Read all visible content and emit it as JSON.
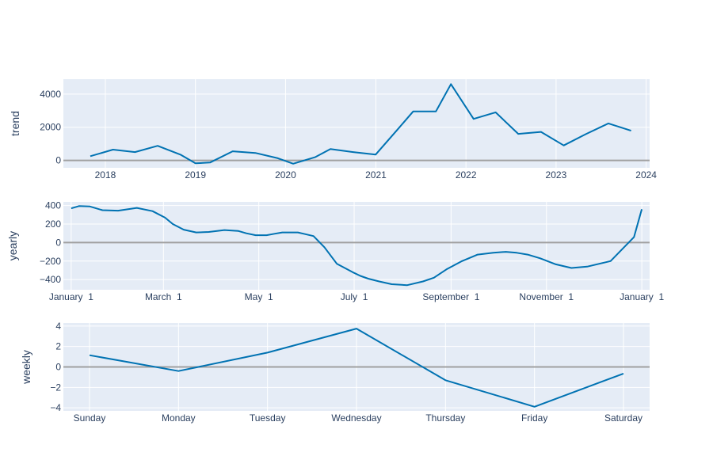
{
  "chart_data": [
    {
      "type": "line",
      "ylabel": "trend",
      "x_type": "date",
      "xlim": [
        "2017-07-15",
        "2024-01-15"
      ],
      "ylim": [
        -450,
        4900
      ],
      "y_ticks": [
        0,
        2000,
        4000
      ],
      "y_tick_labels": [
        "0",
        "2000",
        "4000"
      ],
      "x_ticks": [
        "2018-01-01",
        "2019-01-01",
        "2020-01-01",
        "2021-01-01",
        "2022-01-01",
        "2023-01-01",
        "2024-01-01"
      ],
      "x_tick_labels": [
        "2018",
        "2019",
        "2020",
        "2021",
        "2022",
        "2023",
        "2024"
      ],
      "grid": true,
      "zero_line": true,
      "series": [
        {
          "color": "#0072b2",
          "x": [
            "2017-11-01",
            "2018-02-01",
            "2018-05-01",
            "2018-08-01",
            "2018-11-01",
            "2019-01-01",
            "2019-03-01",
            "2019-06-01",
            "2019-09-01",
            "2019-12-01",
            "2020-02-01",
            "2020-05-01",
            "2020-07-01",
            "2020-10-01",
            "2020-12-31",
            "2021-04-01",
            "2021-06-01",
            "2021-09-01",
            "2021-11-01",
            "2022-02-01",
            "2022-05-01",
            "2022-08-01",
            "2022-11-01",
            "2023-02-01",
            "2023-05-01",
            "2023-08-01",
            "2023-11-01"
          ],
          "y": [
            250,
            650,
            500,
            880,
            350,
            -180,
            -130,
            550,
            450,
            130,
            -200,
            200,
            680,
            500,
            350,
            1900,
            2950,
            2950,
            4600,
            2500,
            2900,
            1600,
            1720,
            900,
            1580,
            2230,
            1790
          ]
        }
      ]
    },
    {
      "type": "line",
      "ylabel": "yearly",
      "x_type": "day_of_year",
      "xlim": [
        -5,
        370
      ],
      "ylim": [
        -510,
        440
      ],
      "y_ticks": [
        -400,
        -200,
        0,
        200,
        400
      ],
      "y_tick_labels": [
        "−400",
        "−200",
        "0",
        "200",
        "400"
      ],
      "x_ticks": [
        0,
        59,
        120,
        181,
        243,
        304,
        365
      ],
      "x_tick_labels": [
        "January  1",
        "March  1",
        "May  1",
        "July  1",
        "September  1",
        "November  1",
        "January  1"
      ],
      "grid": true,
      "zero_line": true,
      "series": [
        {
          "color": "#0072b2",
          "x": [
            0,
            5,
            12,
            20,
            30,
            42,
            52,
            60,
            65,
            72,
            80,
            88,
            98,
            107,
            112,
            118,
            125,
            130,
            135,
            145,
            155,
            162,
            170,
            180,
            185,
            190,
            197,
            205,
            215,
            225,
            232,
            240,
            250,
            260,
            270,
            278,
            285,
            292,
            300,
            310,
            320,
            330,
            345,
            360,
            365
          ],
          "y": [
            370,
            395,
            390,
            350,
            345,
            375,
            340,
            270,
            200,
            140,
            110,
            115,
            135,
            125,
            100,
            80,
            80,
            95,
            110,
            110,
            70,
            -50,
            -230,
            -320,
            -360,
            -390,
            -420,
            -450,
            -460,
            -420,
            -380,
            -290,
            -200,
            -130,
            -110,
            -100,
            -110,
            -130,
            -170,
            -235,
            -275,
            -260,
            -200,
            60,
            360
          ]
        }
      ]
    },
    {
      "type": "line",
      "ylabel": "weekly",
      "x_type": "category",
      "ylim": [
        -4.3,
        4.3
      ],
      "y_ticks": [
        -4,
        -2,
        0,
        2,
        4
      ],
      "y_tick_labels": [
        "−4",
        "−2",
        "0",
        "2",
        "4"
      ],
      "categories": [
        "Sunday",
        "Monday",
        "Tuesday",
        "Wednesday",
        "Thursday",
        "Friday",
        "Saturday"
      ],
      "grid": true,
      "zero_line": true,
      "series": [
        {
          "color": "#0072b2",
          "values": [
            1.15,
            -0.4,
            1.4,
            3.75,
            -1.3,
            -3.9,
            -0.65
          ]
        }
      ]
    }
  ]
}
